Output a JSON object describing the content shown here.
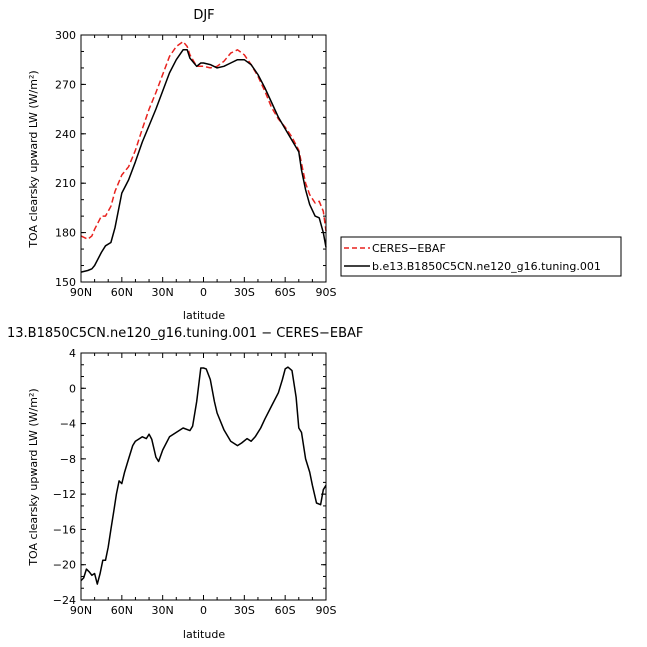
{
  "chart_data": [
    {
      "type": "line",
      "title": "DJF",
      "xlabel": "latitude",
      "ylabel": "TOA clearsky upward LW (W/m²)",
      "xlim": [
        90,
        -90
      ],
      "ylim": [
        150,
        300
      ],
      "xticks": [
        90,
        60,
        30,
        0,
        -30,
        -60,
        -90
      ],
      "xtick_labels": [
        "90N",
        "60N",
        "30N",
        "0",
        "30S",
        "60S",
        "90S"
      ],
      "yticks": [
        150,
        180,
        210,
        240,
        270,
        300
      ],
      "ytick_labels": [
        "150",
        "180",
        "210",
        "240",
        "270",
        "300"
      ],
      "legend_position": "right",
      "series": [
        {
          "name": "CERES−EBAF",
          "color": "#e8221e",
          "dash": "dashed",
          "x": [
            90,
            85,
            82,
            80,
            75,
            72,
            68,
            65,
            60,
            55,
            50,
            45,
            40,
            35,
            30,
            25,
            20,
            15,
            12,
            10,
            5,
            0,
            -5,
            -10,
            -15,
            -20,
            -25,
            -30,
            -35,
            -40,
            -45,
            -50,
            -55,
            -60,
            -65,
            -70,
            -72,
            -75,
            -78,
            -82,
            -85,
            -88,
            -90
          ],
          "y": [
            178,
            176,
            178,
            182,
            190,
            190,
            196,
            205,
            215,
            220,
            230,
            243,
            255,
            265,
            276,
            287,
            293,
            296,
            293,
            288,
            281,
            281,
            280,
            281,
            284,
            289,
            291,
            288,
            282,
            275,
            266,
            256,
            249,
            244,
            238,
            230,
            222,
            210,
            203,
            198,
            199,
            193,
            181
          ]
        },
        {
          "name": "b.e13.B1850C5CN.ne120_g16.tuning.001",
          "color": "#000000",
          "dash": "solid",
          "x": [
            90,
            85,
            82,
            80,
            75,
            72,
            68,
            65,
            60,
            55,
            50,
            45,
            40,
            35,
            30,
            25,
            20,
            15,
            12,
            10,
            5,
            2,
            0,
            -5,
            -10,
            -15,
            -20,
            -25,
            -30,
            -35,
            -40,
            -45,
            -50,
            -55,
            -60,
            -65,
            -70,
            -72,
            -75,
            -78,
            -82,
            -85,
            -88,
            -90
          ],
          "y": [
            156,
            157,
            158,
            160,
            168,
            172,
            174,
            183,
            204,
            212,
            223,
            235,
            245,
            255,
            266,
            277,
            285,
            291,
            291,
            286,
            281,
            283,
            283,
            282,
            280,
            281,
            283,
            285,
            285,
            282,
            276,
            268,
            259,
            250,
            243,
            236,
            229,
            218,
            206,
            197,
            190,
            189,
            180,
            171
          ]
        }
      ]
    },
    {
      "type": "line",
      "title": "13.B1850C5CN.ne120_g16.tuning.001  −  CERES−EBAF",
      "xlabel": "latitude",
      "ylabel": "TOA clearsky upward LW (W/m²)",
      "xlim": [
        90,
        -90
      ],
      "ylim": [
        -24,
        4
      ],
      "xticks": [
        90,
        60,
        30,
        0,
        -30,
        -60,
        -90
      ],
      "xtick_labels": [
        "90N",
        "60N",
        "30N",
        "0",
        "30S",
        "60S",
        "90S"
      ],
      "yticks": [
        4,
        0,
        -4,
        -8,
        -12,
        -16,
        -20,
        -24
      ],
      "ytick_labels": [
        "4",
        "0",
        "−4",
        "−8",
        "−12",
        "−16",
        "−20",
        "−24"
      ],
      "series": [
        {
          "name": "",
          "color": "#000000",
          "dash": "solid",
          "x": [
            90,
            88,
            86,
            84,
            82,
            80,
            78,
            76,
            74,
            72,
            70,
            68,
            66,
            64,
            62,
            60,
            58,
            55,
            52,
            50,
            47,
            45,
            42,
            40,
            38,
            35,
            33,
            30,
            25,
            20,
            15,
            10,
            8,
            5,
            2,
            0,
            -2,
            -5,
            -8,
            -10,
            -15,
            -20,
            -25,
            -28,
            -32,
            -35,
            -38,
            -42,
            -45,
            -50,
            -55,
            -58,
            -60,
            -62,
            -65,
            -68,
            -70,
            -72,
            -75,
            -78,
            -80,
            -83,
            -86,
            -88,
            -90
          ],
          "y": [
            -21.8,
            -21.5,
            -20.5,
            -20.8,
            -21.2,
            -21.0,
            -22.2,
            -21.0,
            -19.5,
            -19.5,
            -18.0,
            -16.0,
            -14.0,
            -12.0,
            -10.5,
            -10.8,
            -9.5,
            -8.0,
            -6.5,
            -6.0,
            -5.7,
            -5.5,
            -5.7,
            -5.2,
            -5.8,
            -7.8,
            -8.3,
            -7.0,
            -5.5,
            -5.0,
            -4.5,
            -4.8,
            -4.3,
            -1.5,
            2.3,
            2.3,
            2.2,
            1.0,
            -1.5,
            -2.8,
            -4.7,
            -6.0,
            -6.5,
            -6.2,
            -5.7,
            -6.0,
            -5.5,
            -4.5,
            -3.5,
            -2.0,
            -0.5,
            1.0,
            2.2,
            2.4,
            2.0,
            -1.0,
            -4.5,
            -5.0,
            -8.0,
            -9.5,
            -11.0,
            -13.0,
            -13.2,
            -11.5,
            -11.0
          ]
        }
      ]
    }
  ]
}
